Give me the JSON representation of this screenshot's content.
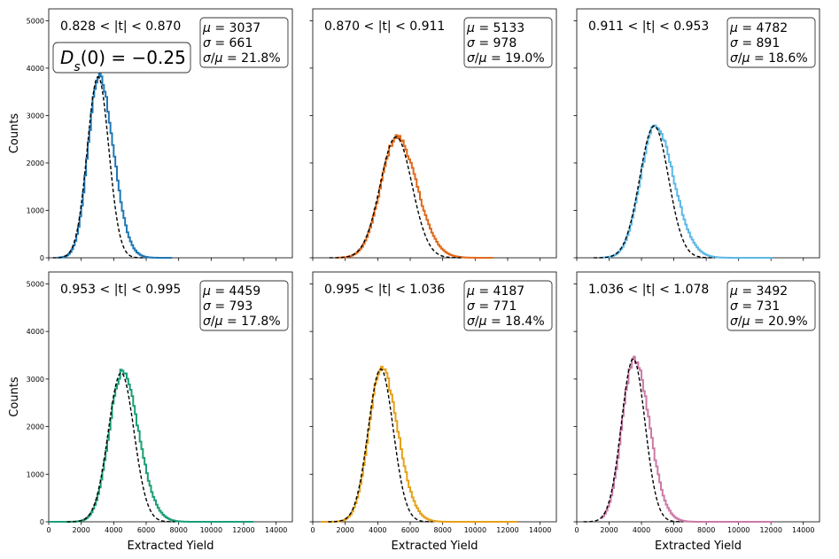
{
  "chart_data": {
    "type": "line",
    "layout": "2x3 grid, shared axes",
    "xlabel": "Extracted Yield",
    "ylabel": "Counts",
    "xlim": [
      0,
      15000
    ],
    "ylim": [
      0,
      5250
    ],
    "xticks": [
      0,
      2000,
      4000,
      6000,
      8000,
      10000,
      12000,
      14000
    ],
    "yticks": [
      0,
      1000,
      2000,
      3000,
      4000,
      5000
    ],
    "fit_style": "black dashed Gaussian",
    "annotation": "D_s(0) = -0.25",
    "panels": [
      {
        "bin": "0.828 < |t| < 0.870",
        "mu": 3037,
        "sigma": 661,
        "ratio": "21.8%",
        "peak": 3820,
        "color": "#1f77b4",
        "hist_range": [
          500,
          7500
        ],
        "skew": 0.35
      },
      {
        "bin": "0.870 < |t| < 0.911",
        "mu": 5133,
        "sigma": 978,
        "ratio": "19.0%",
        "peak": 2550,
        "color": "#e0691a",
        "hist_range": [
          1500,
          11000
        ],
        "skew": 0.25
      },
      {
        "bin": "0.911 < |t| < 0.953",
        "mu": 4782,
        "sigma": 891,
        "ratio": "18.6%",
        "peak": 2780,
        "color": "#5cb8e6",
        "hist_range": [
          1500,
          12000
        ],
        "skew": 0.3
      },
      {
        "bin": "0.953 < |t| < 0.995",
        "mu": 4459,
        "sigma": 793,
        "ratio": "17.8%",
        "peak": 3130,
        "color": "#1a9e77",
        "hist_range": [
          0,
          12500
        ],
        "skew": 0.3
      },
      {
        "bin": "0.995 < |t| < 1.036",
        "mu": 4187,
        "sigma": 771,
        "ratio": "18.4%",
        "peak": 3210,
        "color": "#e6a117",
        "hist_range": [
          500,
          12500
        ],
        "skew": 0.3
      },
      {
        "bin": "1.036 < |t| < 1.078",
        "mu": 3492,
        "sigma": 731,
        "ratio": "20.9%",
        "peak": 3420,
        "color": "#cc79a7",
        "hist_range": [
          1500,
          12000
        ],
        "skew": 0.3
      }
    ]
  }
}
